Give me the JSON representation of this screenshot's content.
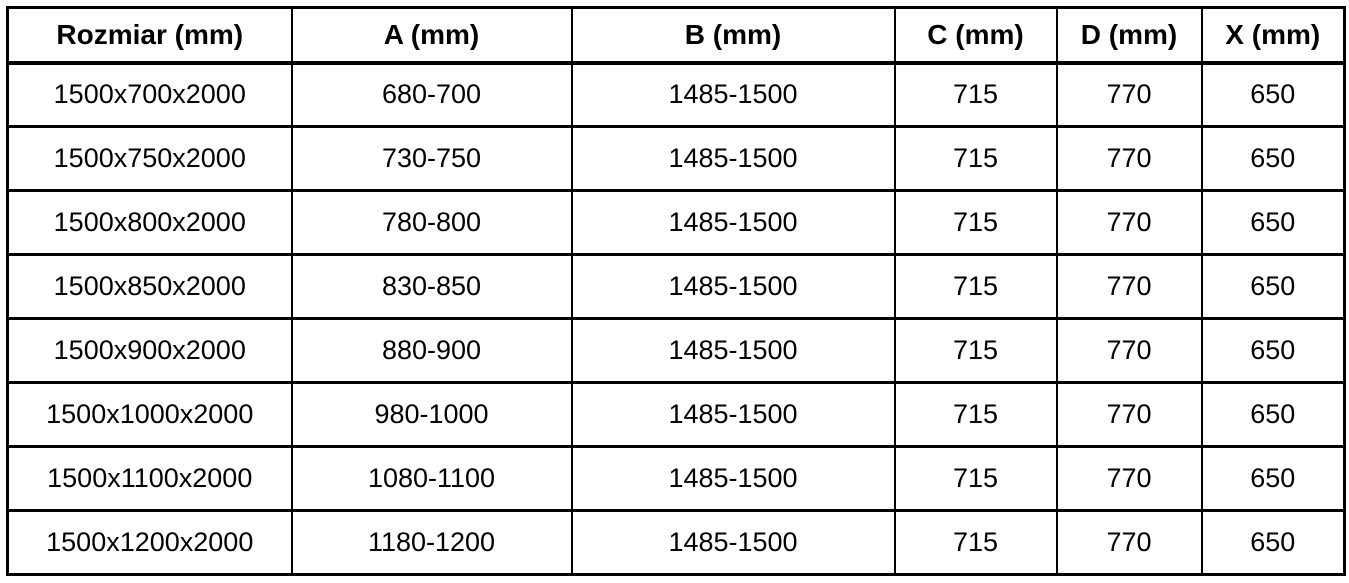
{
  "table": {
    "name": "shower-enclosure-dimensions",
    "unit_note": "mm",
    "colors": {
      "border": "#000000",
      "text": "#000000",
      "background": "#ffffff"
    },
    "columns": [
      {
        "label": "Rozmiar (mm)"
      },
      {
        "label": "A (mm)"
      },
      {
        "label": "B (mm)"
      },
      {
        "label": "C (mm)"
      },
      {
        "label": "D (mm)"
      },
      {
        "label": "X (mm)"
      }
    ],
    "rows": [
      [
        "1500x700x2000",
        "680-700",
        "1485-1500",
        "715",
        "770",
        "650"
      ],
      [
        "1500x750x2000",
        "730-750",
        "1485-1500",
        "715",
        "770",
        "650"
      ],
      [
        "1500x800x2000",
        "780-800",
        "1485-1500",
        "715",
        "770",
        "650"
      ],
      [
        "1500x850x2000",
        "830-850",
        "1485-1500",
        "715",
        "770",
        "650"
      ],
      [
        "1500x900x2000",
        "880-900",
        "1485-1500",
        "715",
        "770",
        "650"
      ],
      [
        "1500x1000x2000",
        "980-1000",
        "1485-1500",
        "715",
        "770",
        "650"
      ],
      [
        "1500x1100x2000",
        "1080-1100",
        "1485-1500",
        "715",
        "770",
        "650"
      ],
      [
        "1500x1200x2000",
        "1180-1200",
        "1485-1500",
        "715",
        "770",
        "650"
      ]
    ]
  }
}
